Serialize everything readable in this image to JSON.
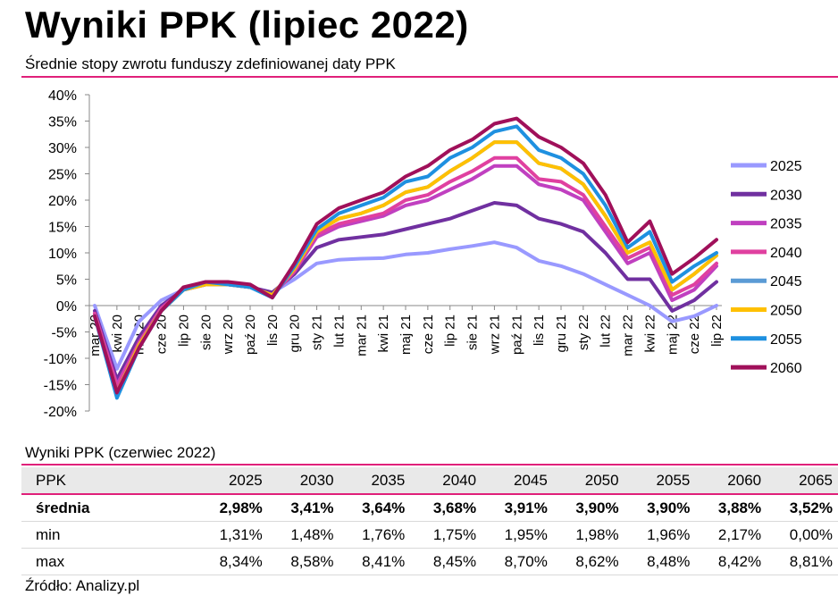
{
  "header": {
    "title": "Wyniki PPK (lipiec 2022)",
    "subtitle": "Średnie stopy zwrotu funduszy zdefiniowanej daty PPK"
  },
  "chart_data": {
    "type": "line",
    "ylim": [
      -0.2,
      0.4
    ],
    "yticks": [
      "40%",
      "35%",
      "30%",
      "25%",
      "20%",
      "15%",
      "10%",
      "5%",
      "0%",
      "-5%",
      "-10%",
      "-15%",
      "-20%"
    ],
    "x_tick_labels": [
      "mar 20",
      "kwi 20",
      "maj 20",
      "cze 20",
      "lip 20",
      "sie 20",
      "wrz 20",
      "paź 20",
      "lis 20",
      "gru 20",
      "sty 21",
      "lut 21",
      "mar 21",
      "kwi 21",
      "maj 21",
      "cze 21",
      "lip 21",
      "sie 21",
      "wrz 21",
      "paź 21",
      "lis 21",
      "gru 21",
      "sty 22",
      "lut 22",
      "mar 22",
      "kwi 22",
      "maj 22",
      "cze 22",
      "lip 22"
    ],
    "x": [
      "mar 20",
      "kwi 20",
      "maj 20",
      "cze 20",
      "lip 20",
      "sie 20",
      "wrz 20",
      "paź 20",
      "lis 20",
      "gru 20",
      "sty 21",
      "lut 21",
      "mar 21",
      "kwi 21",
      "maj 21",
      "cze 21",
      "lip 21",
      "sie 21",
      "wrz 21",
      "paź 21",
      "lis 21",
      "gru 21",
      "sty 22",
      "lut 22",
      "mar 22",
      "kwi 22",
      "maj 22",
      "cze 22",
      "lip 22"
    ],
    "legend_position": "right",
    "grid": false,
    "series": [
      {
        "name": "2025",
        "color": "#9999ff",
        "values": [
          0.0,
          -0.12,
          -0.03,
          0.01,
          0.03,
          0.04,
          0.04,
          0.035,
          0.025,
          0.05,
          0.08,
          0.087,
          0.089,
          0.09,
          0.097,
          0.1,
          0.107,
          0.113,
          0.12,
          0.11,
          0.085,
          0.075,
          0.06,
          0.04,
          0.02,
          0.0,
          -0.03,
          -0.02,
          0.0
        ]
      },
      {
        "name": "2030",
        "color": "#7030a0",
        "values": [
          -0.01,
          -0.14,
          -0.06,
          0.0,
          0.03,
          0.04,
          0.04,
          0.035,
          0.025,
          0.06,
          0.11,
          0.125,
          0.13,
          0.135,
          0.145,
          0.155,
          0.165,
          0.18,
          0.195,
          0.19,
          0.165,
          0.155,
          0.14,
          0.1,
          0.05,
          0.05,
          -0.01,
          0.01,
          0.045
        ]
      },
      {
        "name": "2035",
        "color": "#c040c0",
        "values": [
          -0.015,
          -0.15,
          -0.07,
          -0.005,
          0.03,
          0.04,
          0.04,
          0.035,
          0.02,
          0.065,
          0.13,
          0.15,
          0.16,
          0.17,
          0.19,
          0.2,
          0.22,
          0.24,
          0.265,
          0.265,
          0.23,
          0.22,
          0.2,
          0.14,
          0.08,
          0.1,
          0.01,
          0.03,
          0.075
        ]
      },
      {
        "name": "2040",
        "color": "#e040a0",
        "values": [
          -0.015,
          -0.155,
          -0.07,
          -0.005,
          0.03,
          0.04,
          0.04,
          0.035,
          0.02,
          0.065,
          0.135,
          0.155,
          0.165,
          0.175,
          0.2,
          0.21,
          0.235,
          0.255,
          0.28,
          0.28,
          0.24,
          0.235,
          0.21,
          0.15,
          0.09,
          0.11,
          0.02,
          0.04,
          0.08
        ]
      },
      {
        "name": "2045",
        "color": "#5b9bd5",
        "values": [
          -0.02,
          -0.165,
          -0.075,
          -0.01,
          0.03,
          0.04,
          0.04,
          0.035,
          0.02,
          0.07,
          0.14,
          0.165,
          0.175,
          0.19,
          0.215,
          0.225,
          0.255,
          0.28,
          0.31,
          0.31,
          0.27,
          0.26,
          0.23,
          0.17,
          0.1,
          0.12,
          0.03,
          0.06,
          0.095
        ]
      },
      {
        "name": "2050",
        "color": "#ffc000",
        "values": [
          -0.02,
          -0.165,
          -0.075,
          -0.01,
          0.03,
          0.04,
          0.04,
          0.035,
          0.02,
          0.07,
          0.14,
          0.165,
          0.175,
          0.19,
          0.215,
          0.225,
          0.255,
          0.28,
          0.31,
          0.31,
          0.27,
          0.26,
          0.23,
          0.17,
          0.1,
          0.12,
          0.03,
          0.06,
          0.095
        ]
      },
      {
        "name": "2055",
        "color": "#1e90e0",
        "values": [
          -0.02,
          -0.175,
          -0.08,
          -0.01,
          0.03,
          0.045,
          0.04,
          0.035,
          0.015,
          0.075,
          0.145,
          0.175,
          0.19,
          0.205,
          0.235,
          0.245,
          0.28,
          0.3,
          0.33,
          0.34,
          0.295,
          0.28,
          0.25,
          0.19,
          0.11,
          0.14,
          0.045,
          0.075,
          0.1
        ]
      },
      {
        "name": "2060",
        "color": "#a0105a",
        "values": [
          -0.02,
          -0.165,
          -0.08,
          -0.01,
          0.035,
          0.045,
          0.045,
          0.04,
          0.015,
          0.08,
          0.155,
          0.185,
          0.2,
          0.215,
          0.245,
          0.265,
          0.295,
          0.315,
          0.345,
          0.355,
          0.32,
          0.3,
          0.27,
          0.21,
          0.12,
          0.16,
          0.06,
          0.09,
          0.125
        ]
      }
    ]
  },
  "table": {
    "title": "Wyniki PPK (czerwiec 2022)",
    "header": [
      "PPK",
      "2025",
      "2030",
      "2035",
      "2040",
      "2045",
      "2050",
      "2055",
      "2060",
      "2065"
    ],
    "rows": [
      {
        "label": "średnia",
        "values": [
          "2,98%",
          "3,41%",
          "3,64%",
          "3,68%",
          "3,91%",
          "3,90%",
          "3,90%",
          "3,88%",
          "3,52%"
        ]
      },
      {
        "label": "min",
        "values": [
          "1,31%",
          "1,48%",
          "1,76%",
          "1,75%",
          "1,95%",
          "1,98%",
          "1,96%",
          "2,17%",
          "0,00%"
        ]
      },
      {
        "label": "max",
        "values": [
          "8,34%",
          "8,58%",
          "8,41%",
          "8,45%",
          "8,70%",
          "8,62%",
          "8,48%",
          "8,42%",
          "8,81%"
        ]
      }
    ]
  },
  "source": "Źródło: Analizy.pl"
}
